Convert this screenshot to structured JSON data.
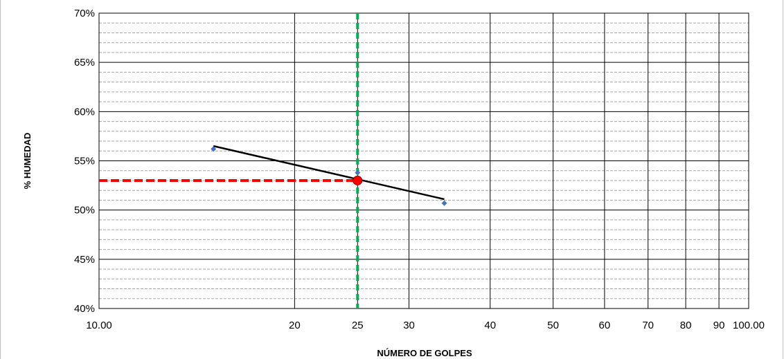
{
  "chart_data": {
    "type": "scatter",
    "xlabel": "NÚMERO DE GOLPES",
    "ylabel": "% HUMEDAD",
    "x_scale": "log",
    "xlim": [
      10,
      100
    ],
    "ylim": [
      0.4,
      0.7
    ],
    "grid": true,
    "x_ticks": [
      10,
      20,
      25,
      30,
      40,
      50,
      60,
      70,
      80,
      90,
      100
    ],
    "x_tick_labels": [
      "10.00",
      "20",
      "25",
      "30",
      "40",
      "50",
      "60",
      "70",
      "80",
      "90",
      "100.00"
    ],
    "y_ticks": [
      0.4,
      0.45,
      0.5,
      0.55,
      0.6,
      0.65,
      0.7
    ],
    "y_tick_labels": [
      "40%",
      "45%",
      "50%",
      "55%",
      "60%",
      "65%",
      "70%"
    ],
    "series": [
      {
        "kind": "points",
        "color": "#4472c4",
        "points": [
          {
            "x": 15,
            "y": 0.562
          },
          {
            "x": 25,
            "y": 0.538
          },
          {
            "x": 34,
            "y": 0.507
          }
        ]
      },
      {
        "kind": "trendline",
        "color": "#000000",
        "points": [
          {
            "x": 15,
            "y": 0.565
          },
          {
            "x": 34,
            "y": 0.511
          }
        ]
      }
    ],
    "reference_lines": [
      {
        "orientation": "vertical",
        "x": 25,
        "color": "#00b050",
        "style": "dashed"
      },
      {
        "orientation": "horizontal",
        "y": 0.53,
        "x_from": 10,
        "x_to": 25,
        "color": "#ff0000",
        "style": "dashed"
      }
    ],
    "highlight_point": {
      "x": 25,
      "y": 0.53,
      "color": "#ff0000"
    }
  }
}
